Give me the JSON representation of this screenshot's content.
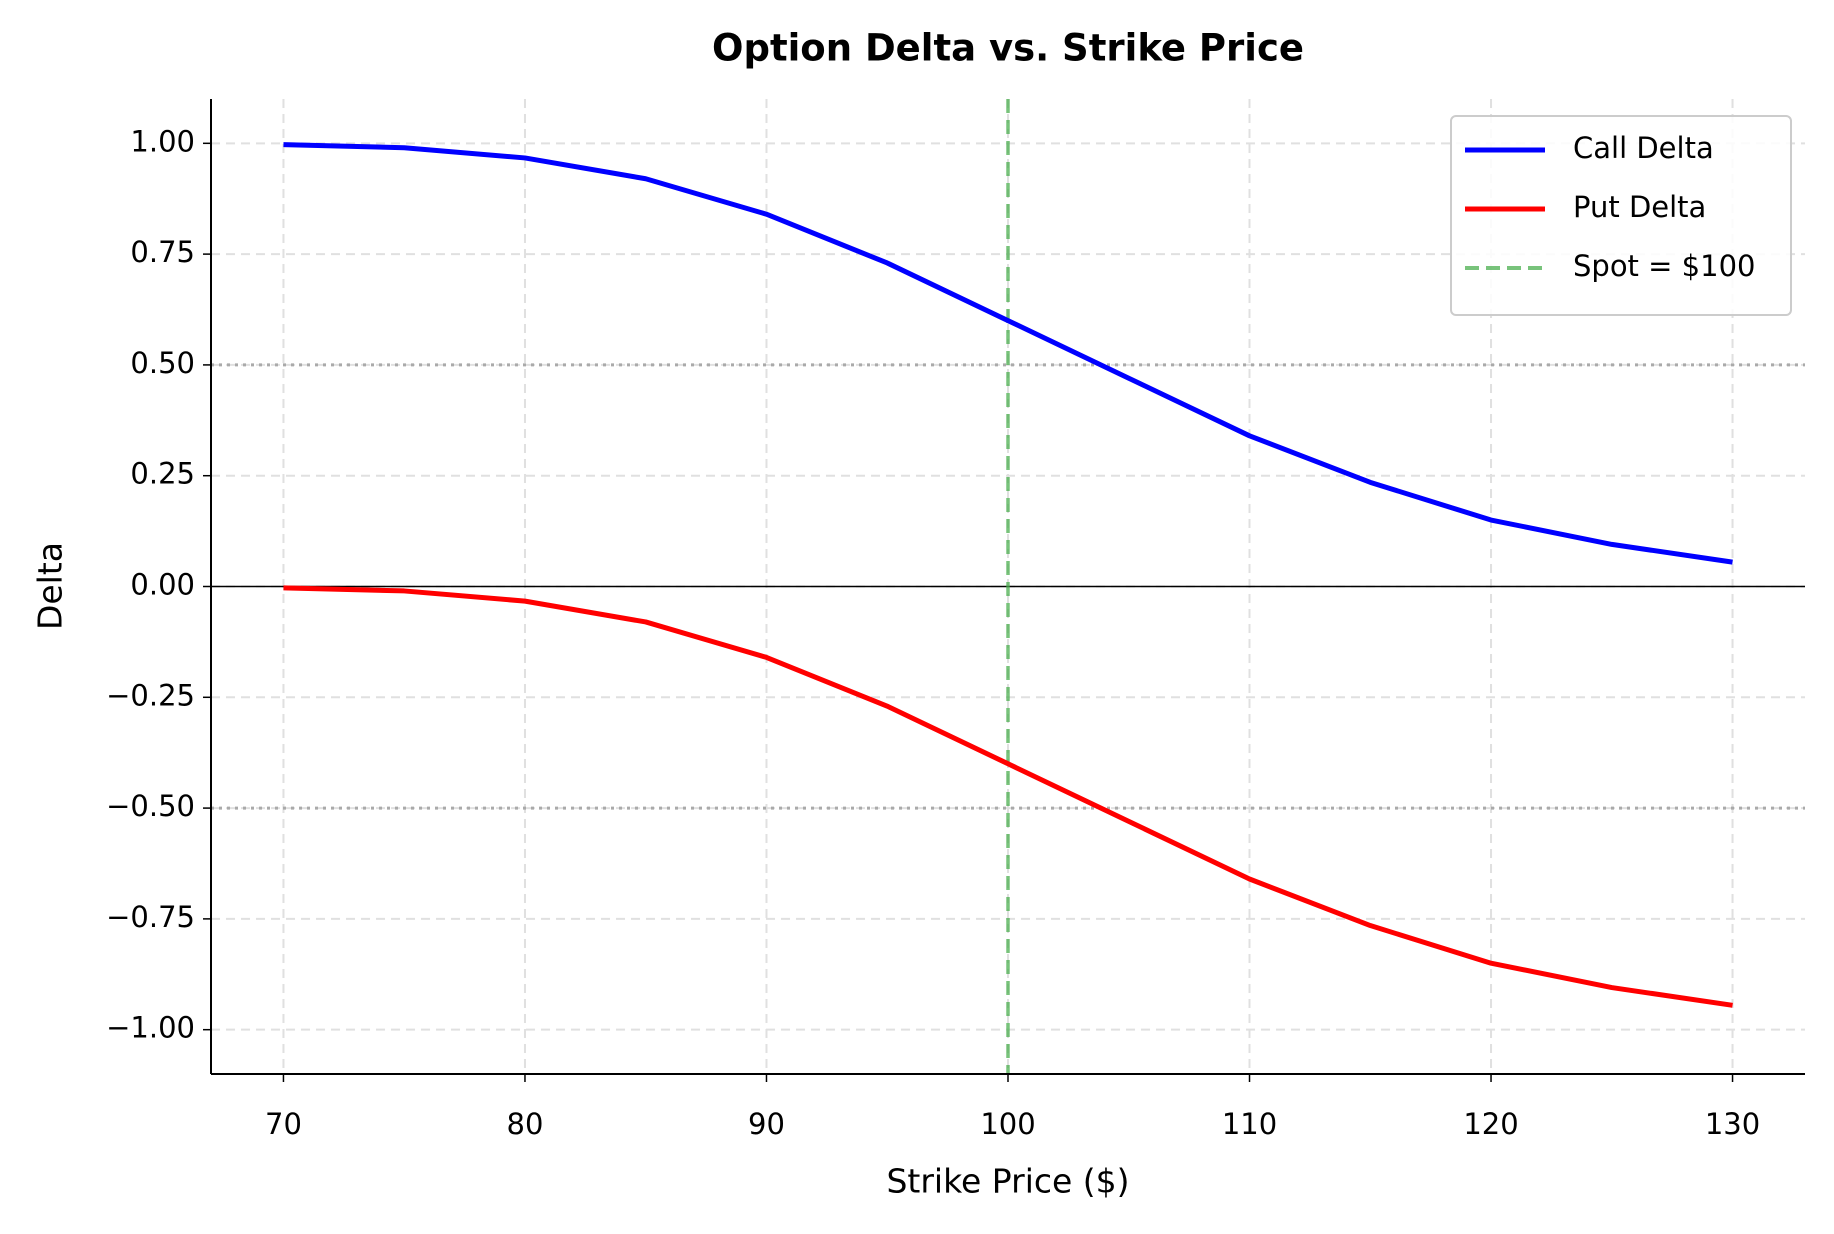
{
  "chart_data": {
    "type": "line",
    "title": "Option Delta vs. Strike Price",
    "x_label": "Strike Price ($)",
    "y_label": "Delta",
    "x": [
      70,
      75,
      80,
      85,
      90,
      95,
      100,
      105,
      110,
      115,
      120,
      125,
      130
    ],
    "series": [
      {
        "name": "Call Delta",
        "color": "#0000ff",
        "values": [
          0.997,
          0.99,
          0.967,
          0.92,
          0.84,
          0.73,
          0.6,
          0.47,
          0.34,
          0.235,
          0.15,
          0.095,
          0.055
        ]
      },
      {
        "name": "Put Delta",
        "color": "#ff0000",
        "values": [
          -0.003,
          -0.01,
          -0.033,
          -0.08,
          -0.16,
          -0.27,
          -0.4,
          -0.53,
          -0.66,
          -0.765,
          -0.85,
          -0.905,
          -0.945
        ]
      }
    ],
    "vlines": [
      {
        "name": "Spot = $100",
        "x": 100,
        "color": "#4caf50",
        "style": "dashed"
      }
    ],
    "hlines": [
      {
        "y": 0,
        "color": "#000000",
        "style": "solid"
      },
      {
        "y": 0.5,
        "color": "#aaaaaa",
        "style": "dotted"
      },
      {
        "y": -0.5,
        "color": "#aaaaaa",
        "style": "dotted"
      }
    ],
    "xlim": [
      67,
      133
    ],
    "ylim": [
      -1.1,
      1.1
    ],
    "xticks": [
      70,
      80,
      90,
      100,
      110,
      120,
      130
    ],
    "yticks": [
      {
        "value": -1,
        "label": "−1.00"
      },
      {
        "value": -0.75,
        "label": "−0.75"
      },
      {
        "value": -0.5,
        "label": "−0.50"
      },
      {
        "value": -0.25,
        "label": "−0.25"
      },
      {
        "value": 0,
        "label": "0.00"
      },
      {
        "value": 0.25,
        "label": "0.25"
      },
      {
        "value": 0.5,
        "label": "0.50"
      },
      {
        "value": 0.75,
        "label": "0.75"
      },
      {
        "value": 1,
        "label": "1.00"
      }
    ],
    "grid": true,
    "legend": "upper right"
  }
}
